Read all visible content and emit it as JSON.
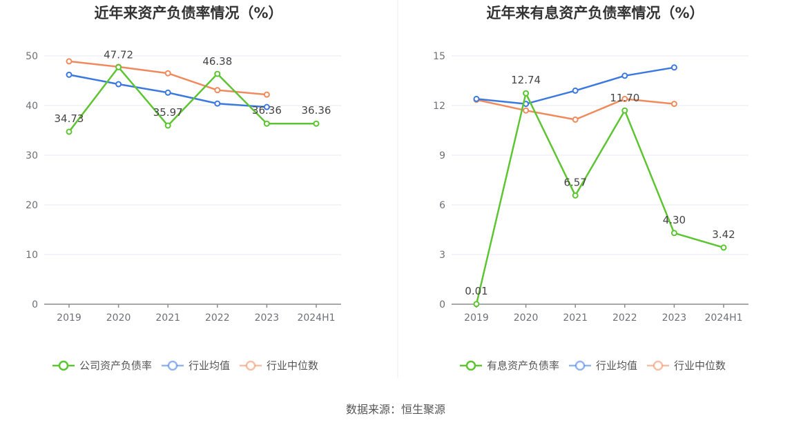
{
  "source": "数据来源：恒生聚源",
  "colors": {
    "company": "#5cc531",
    "industry_avg": "#3b78e0",
    "industry_median": "#f08a5d"
  },
  "chart_data": [
    {
      "type": "line",
      "title": "近年来资产负债率情况（%）",
      "x": [
        "2019",
        "2020",
        "2021",
        "2022",
        "2023",
        "2024H1"
      ],
      "ylim": [
        0,
        50
      ],
      "yticks": [
        0,
        10,
        20,
        30,
        40,
        50
      ],
      "grid": true,
      "legend_position": "bottom",
      "series": [
        {
          "name": "公司资产负债率",
          "color_key": "company",
          "values": [
            34.73,
            47.72,
            35.97,
            46.38,
            36.36,
            36.36
          ],
          "labels": [
            "34.73",
            "47.72",
            "35.97",
            "46.38",
            "36.36",
            "36.36"
          ]
        },
        {
          "name": "行业均值",
          "color_key": "industry_avg",
          "values": [
            46.2,
            44.3,
            42.6,
            40.4,
            39.7,
            null
          ]
        },
        {
          "name": "行业中位数",
          "color_key": "industry_median",
          "values": [
            48.9,
            47.8,
            46.5,
            43.1,
            42.2,
            null
          ]
        }
      ]
    },
    {
      "type": "line",
      "title": "近年来有息资产负债率情况（%）",
      "x": [
        "2019",
        "2020",
        "2021",
        "2022",
        "2023",
        "2024H1"
      ],
      "ylim": [
        0,
        15
      ],
      "yticks": [
        0,
        3,
        6,
        9,
        12,
        15
      ],
      "grid": true,
      "legend_position": "bottom",
      "series": [
        {
          "name": "有息资产负债率",
          "color_key": "company",
          "values": [
            0.01,
            12.74,
            6.57,
            11.7,
            4.3,
            3.42
          ],
          "labels": [
            "0.01",
            "12.74",
            "6.57",
            "11.70",
            "4.30",
            "3.42"
          ]
        },
        {
          "name": "行业均值",
          "color_key": "industry_avg",
          "values": [
            12.4,
            12.1,
            12.9,
            13.8,
            14.3,
            null
          ]
        },
        {
          "name": "行业中位数",
          "color_key": "industry_median",
          "values": [
            12.35,
            11.7,
            11.15,
            12.4,
            12.1,
            null
          ]
        }
      ]
    }
  ]
}
